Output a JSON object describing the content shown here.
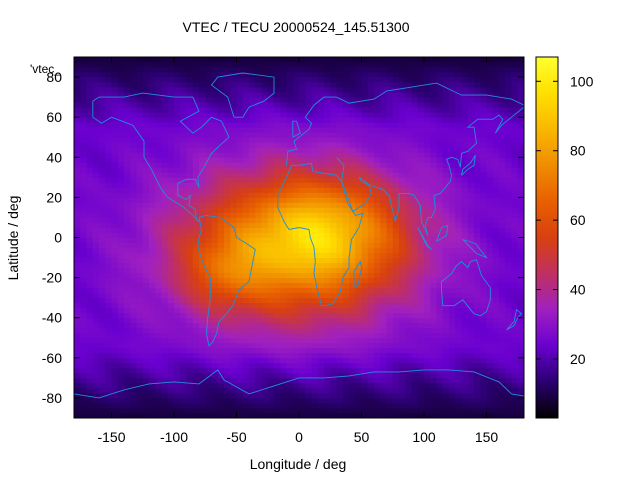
{
  "chart_data": {
    "type": "heatmap",
    "title": "VTEC / TECU 20000524_145.51300",
    "xlabel": "Longitude / deg",
    "ylabel": "Latitude / deg",
    "key_label": "'vtec_",
    "xlim": [
      -180,
      180
    ],
    "ylim": [
      -90,
      90
    ],
    "xticks": [
      -150,
      -100,
      -50,
      0,
      50,
      100,
      150
    ],
    "yticks": [
      80,
      60,
      40,
      20,
      0,
      -20,
      -40,
      -60,
      -80
    ],
    "colorbar": {
      "range": [
        3,
        107
      ],
      "ticks": [
        20,
        40,
        60,
        80,
        100
      ],
      "palette": [
        "#000000",
        "#2a0070",
        "#6a00d0",
        "#a020c0",
        "#c03060",
        "#d84010",
        "#e86000",
        "#f08c00",
        "#f8b800",
        "#ffe000",
        "#ffff30"
      ]
    },
    "grid": {
      "lon_step_deg": 5,
      "lat_step_deg": 2.5
    },
    "model": {
      "background": 24,
      "bulge": {
        "peak": 54,
        "center_lon": -5,
        "center_lat": -5,
        "sigma_lon": 65,
        "sigma_lat": 26
      },
      "africa_peak": {
        "amp": 24,
        "center_lon": 25,
        "center_lat": 5,
        "sigma_lon": 40,
        "sigma_lat": 18
      },
      "america_peak": {
        "amp": 14,
        "center_lon": -60,
        "center_lat": -18,
        "sigma_lon": 22,
        "sigma_lat": 12
      }
    },
    "coastline_color": "#1f8fd8"
  }
}
